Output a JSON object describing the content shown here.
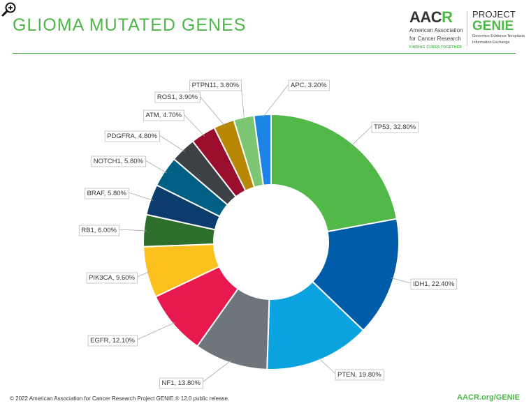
{
  "title": "GLIOMA MUTATED GENES",
  "logos": {
    "aacr_main": "AAC",
    "aacr_r": "R",
    "aacr_line1": "American Association",
    "aacr_line2": "for Cancer Research",
    "aacr_tagline": "FINDING CURES TOGETHER",
    "genie_project": "PROJECT",
    "genie_name": "GENIE",
    "genie_line1": "Genomics Evidence Neoplasia",
    "genie_line2": "Information Exchange"
  },
  "colors": {
    "brand_green": "#4db848"
  },
  "chart_data": {
    "type": "pie",
    "donut": true,
    "unit": "%",
    "slices": [
      {
        "label": "TP53",
        "value": 32.8,
        "display": "TP53, 32.80%",
        "color": "#52b848"
      },
      {
        "label": "IDH1",
        "value": 22.4,
        "display": "IDH1, 22.40%",
        "color": "#005ca8"
      },
      {
        "label": "PTEN",
        "value": 19.8,
        "display": "PTEN, 19.80%",
        "color": "#0aa3e0"
      },
      {
        "label": "NF1",
        "value": 13.8,
        "display": "NF1, 13.80%",
        "color": "#6e767b"
      },
      {
        "label": "EGFR",
        "value": 12.1,
        "display": "EGFR, 12.10%",
        "color": "#e8194e"
      },
      {
        "label": "PIK3CA",
        "value": 9.6,
        "display": "PIK3CA, 9.60%",
        "color": "#fcc11f"
      },
      {
        "label": "RB1",
        "value": 6.0,
        "display": "RB1, 6.00%",
        "color": "#2d6f2b"
      },
      {
        "label": "BRAF",
        "value": 5.8,
        "display": "BRAF, 5.80%",
        "color": "#0c3b6d"
      },
      {
        "label": "NOTCH1",
        "value": 5.8,
        "display": "NOTCH1, 5.80%",
        "color": "#005f84"
      },
      {
        "label": "PDGFRA",
        "value": 4.8,
        "display": "PDGFRA, 4.80%",
        "color": "#3c4145"
      },
      {
        "label": "ATM",
        "value": 4.7,
        "display": "ATM, 4.70%",
        "color": "#9b0d2d"
      },
      {
        "label": "ROS1",
        "value": 3.9,
        "display": "ROS1, 3.90%",
        "color": "#b88703"
      },
      {
        "label": "PTPN11",
        "value": 3.8,
        "display": "PTPN11, 3.80%",
        "color": "#7cc572"
      },
      {
        "label": "APC",
        "value": 3.2,
        "display": "APC, 3.20%",
        "color": "#1b84e5"
      }
    ]
  },
  "footer": {
    "copyright": "© 2022 American Association for Cancer Research Project GENIE ® 12.0 public release.",
    "link": "AACR.org/GENIE"
  }
}
